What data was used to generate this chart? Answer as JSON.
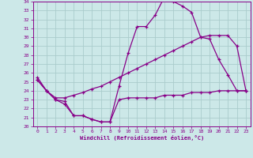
{
  "xlabel": "Windchill (Refroidissement éolien,°C)",
  "bg_color": "#cce8e8",
  "line_color": "#880088",
  "grid_color": "#aacccc",
  "xlim": [
    -0.5,
    23.5
  ],
  "ylim": [
    20,
    34
  ],
  "xticks": [
    0,
    1,
    2,
    3,
    4,
    5,
    6,
    7,
    8,
    9,
    10,
    11,
    12,
    13,
    14,
    15,
    16,
    17,
    18,
    19,
    20,
    21,
    22,
    23
  ],
  "yticks": [
    20,
    21,
    22,
    23,
    24,
    25,
    26,
    27,
    28,
    29,
    30,
    31,
    32,
    33,
    34
  ],
  "line1_x": [
    0,
    1,
    2,
    3,
    4,
    5,
    6,
    7,
    8,
    9,
    10,
    11,
    12,
    13,
    14,
    15,
    16,
    17,
    18,
    19,
    20,
    21,
    22,
    23
  ],
  "line1_y": [
    25.5,
    24.0,
    23.0,
    22.5,
    21.2,
    21.2,
    20.8,
    20.5,
    20.5,
    24.5,
    28.2,
    31.2,
    31.2,
    32.5,
    34.5,
    34.0,
    33.5,
    32.8,
    30.0,
    29.8,
    27.5,
    25.8,
    24.0,
    24.0
  ],
  "line2_x": [
    0,
    1,
    2,
    3,
    4,
    5,
    6,
    7,
    8,
    9,
    10,
    11,
    12,
    13,
    14,
    15,
    16,
    17,
    18,
    19,
    20,
    21,
    22,
    23
  ],
  "line2_y": [
    25.2,
    24.0,
    23.2,
    23.2,
    23.5,
    23.8,
    24.2,
    24.5,
    25.0,
    25.5,
    26.0,
    26.5,
    27.0,
    27.5,
    28.0,
    28.5,
    29.0,
    29.5,
    30.0,
    30.2,
    30.2,
    30.2,
    29.0,
    24.0
  ],
  "line3_x": [
    0,
    1,
    2,
    3,
    4,
    5,
    6,
    7,
    8,
    9,
    10,
    11,
    12,
    13,
    14,
    15,
    16,
    17,
    18,
    19,
    20,
    21,
    22,
    23
  ],
  "line3_y": [
    25.2,
    24.0,
    23.0,
    22.8,
    21.2,
    21.2,
    20.8,
    20.5,
    20.5,
    23.0,
    23.2,
    23.2,
    23.2,
    23.2,
    23.5,
    23.5,
    23.5,
    23.8,
    23.8,
    23.8,
    24.0,
    24.0,
    24.0,
    24.0
  ]
}
